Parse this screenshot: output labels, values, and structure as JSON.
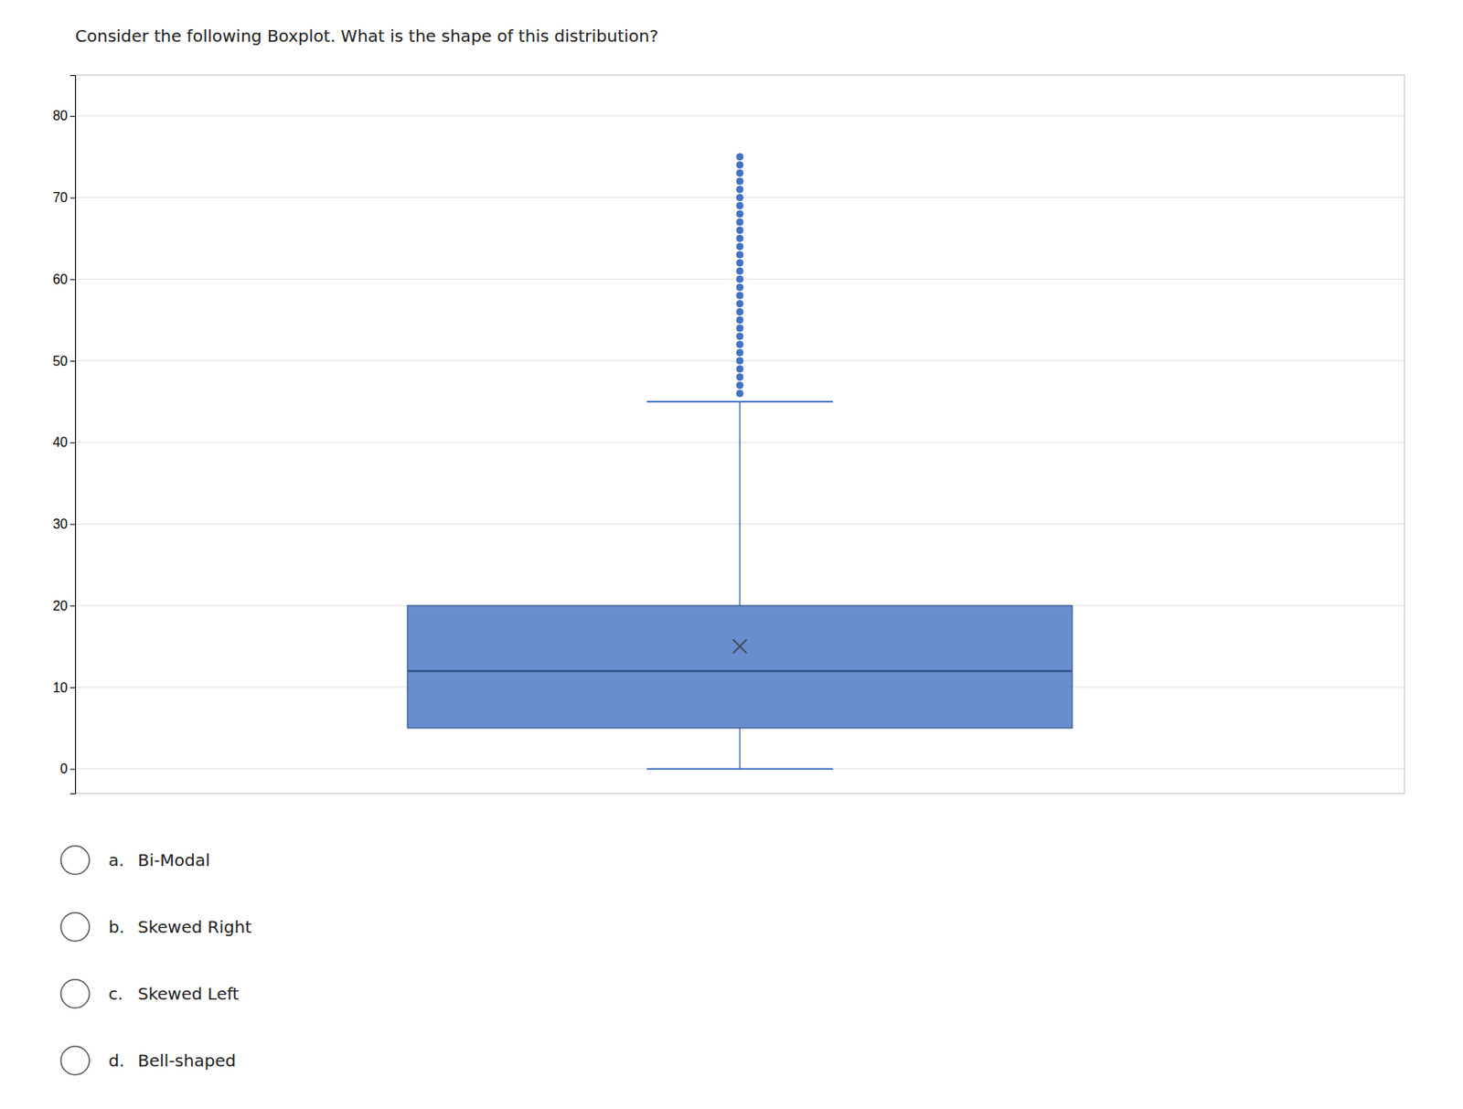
{
  "chart_data": {
    "type": "box",
    "title": "Consider the following Boxplot. What is the shape of this distribution?",
    "q1": 5,
    "median": 12,
    "q3": 20,
    "mean": 15,
    "whisker_low": 0,
    "whisker_high": 45,
    "outliers": [
      46,
      47,
      48,
      49,
      50,
      51,
      52,
      53,
      54,
      55,
      56,
      57,
      58,
      59,
      60,
      61,
      62,
      63,
      64,
      65,
      66,
      67,
      68,
      69,
      70,
      71,
      72,
      73,
      74,
      75
    ],
    "color": "#4472c4",
    "ylim": [
      -3,
      85
    ],
    "yticks": [
      0,
      10,
      20,
      30,
      40,
      50,
      60,
      70,
      80
    ],
    "grid": true,
    "tick_labels": "y",
    "choices": [
      {
        "letter": "a.",
        "label": "Bi-Modal"
      },
      {
        "letter": "b.",
        "label": "Skewed Right"
      },
      {
        "letter": "c.",
        "label": "Skewed Left"
      },
      {
        "letter": "d.",
        "label": "Bell-shaped"
      }
    ]
  }
}
